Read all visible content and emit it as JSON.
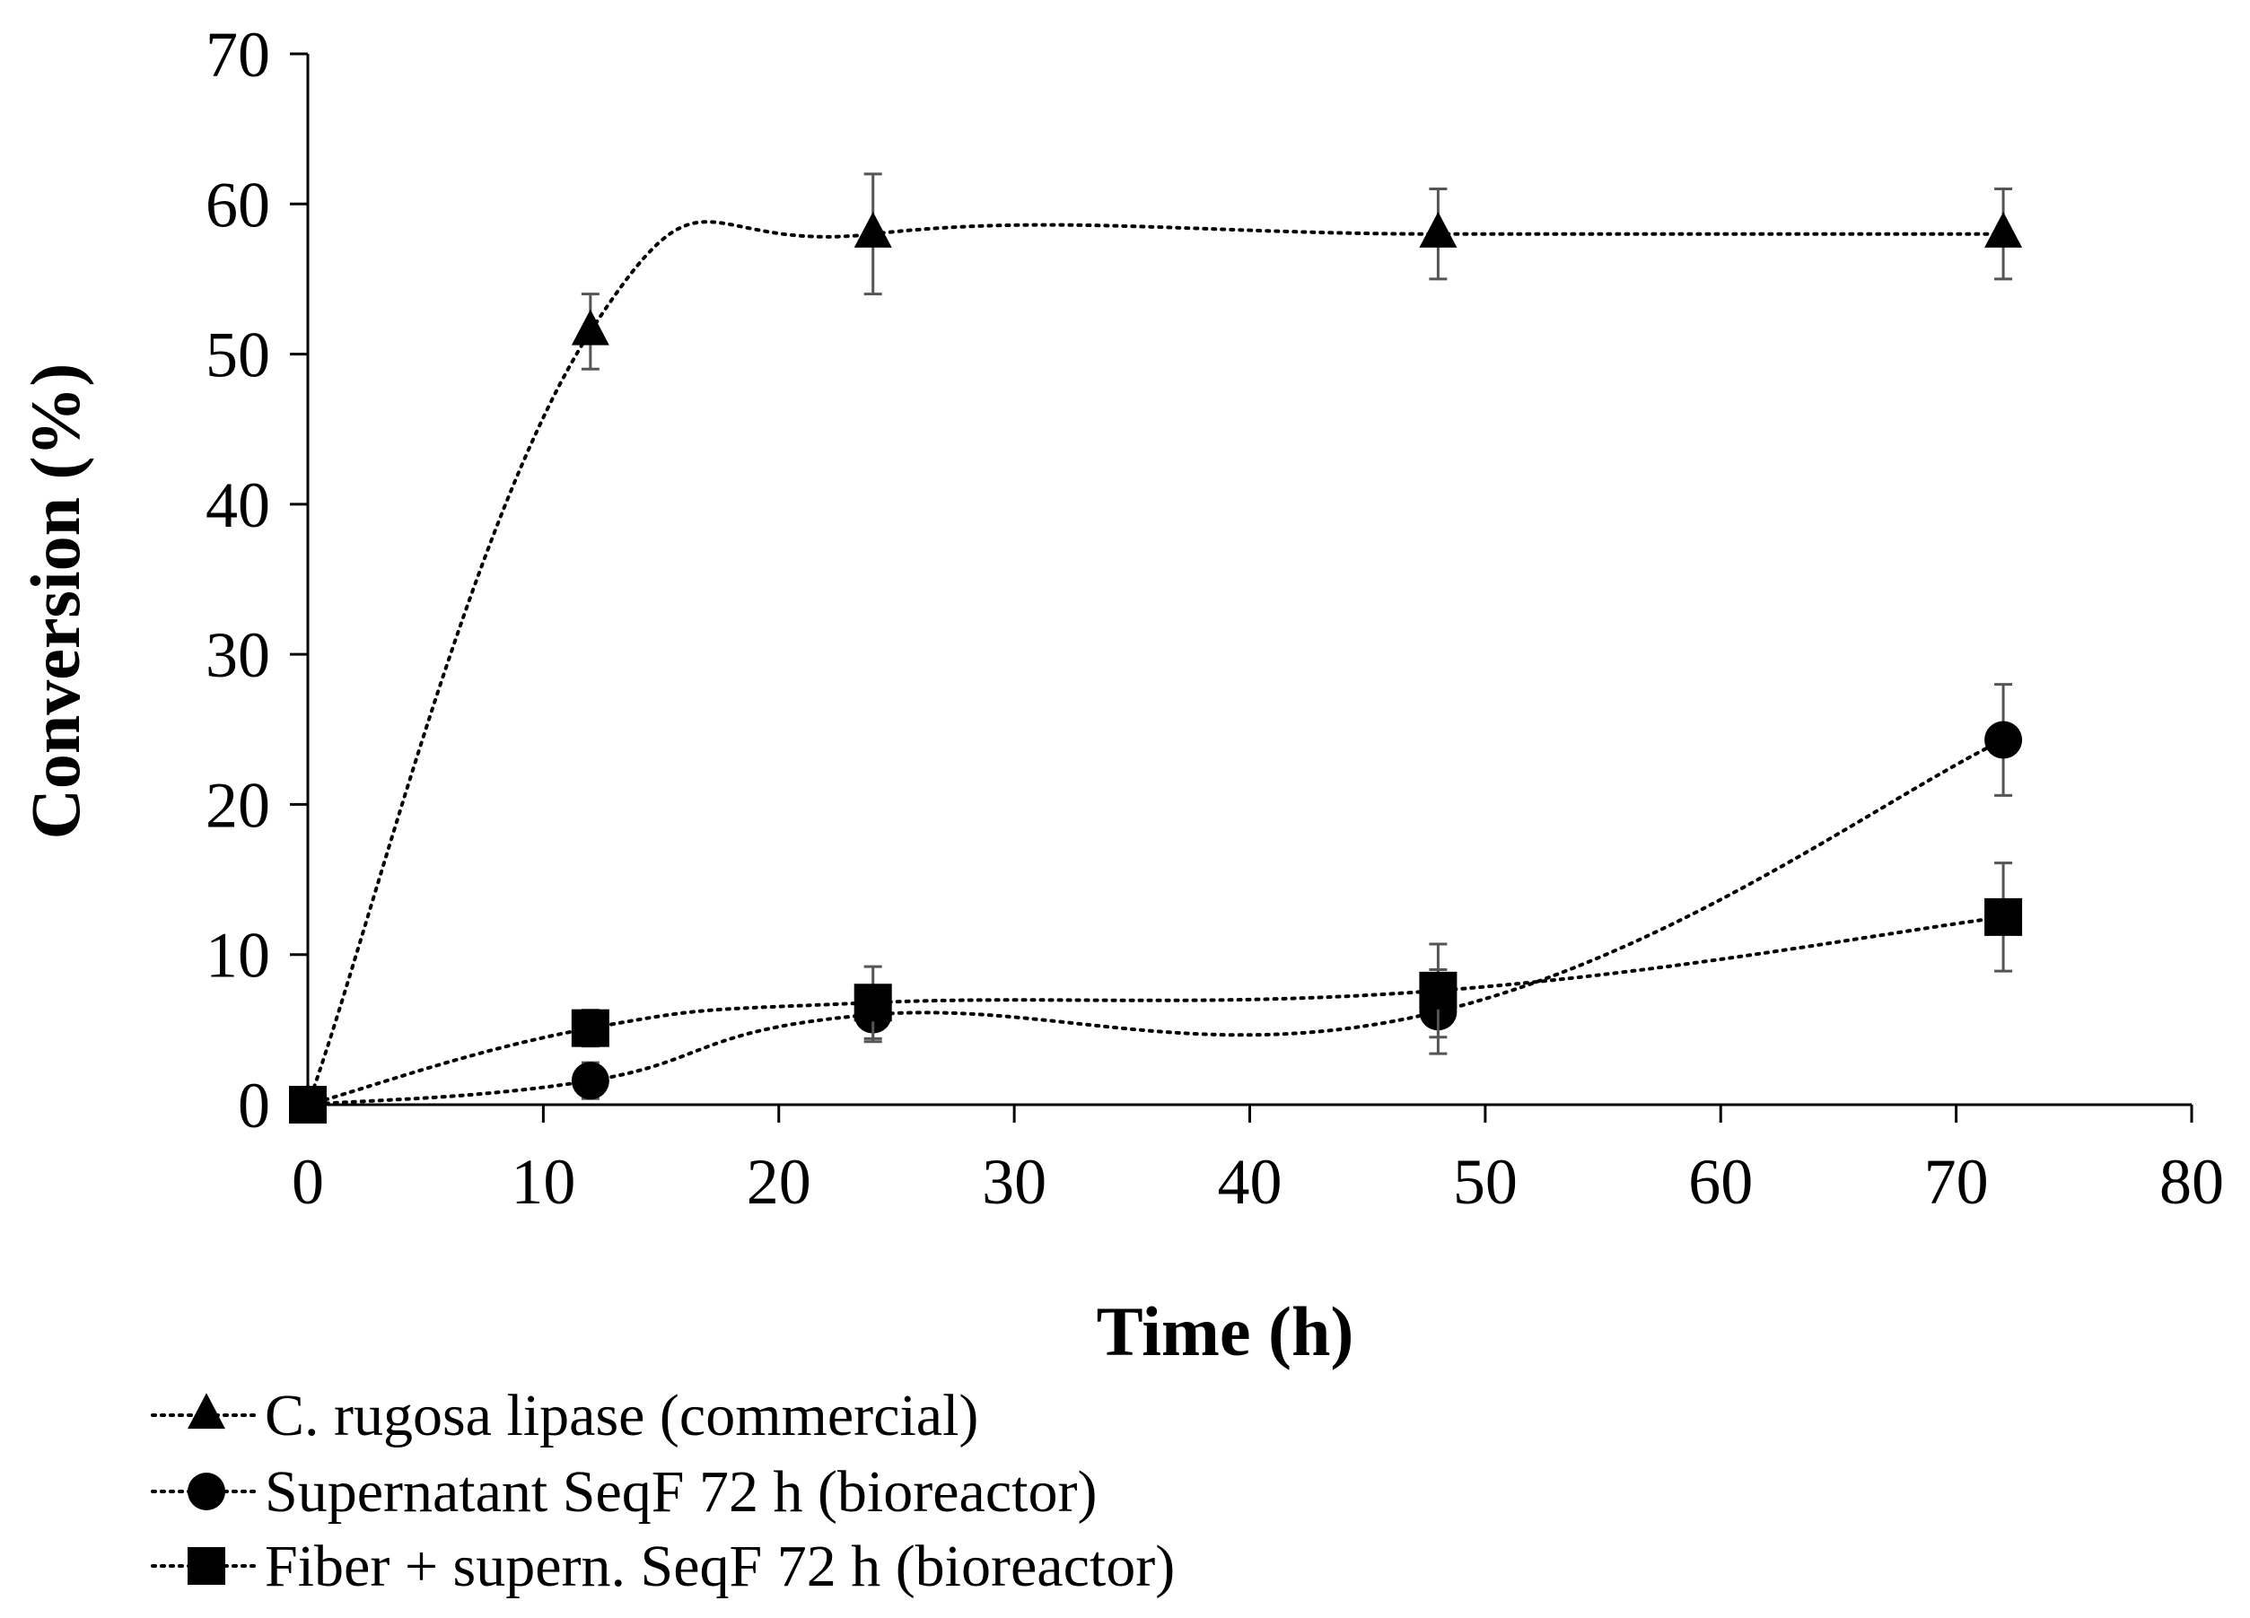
{
  "chart_data": {
    "type": "line",
    "title": "",
    "xlabel": "Time (h)",
    "ylabel": "Conversion (%)",
    "xlim": [
      0,
      80
    ],
    "ylim": [
      0,
      70
    ],
    "xticks": [
      0,
      10,
      20,
      30,
      40,
      50,
      60,
      70,
      80
    ],
    "yticks": [
      0,
      10,
      20,
      30,
      40,
      50,
      60,
      70
    ],
    "x": [
      0,
      12,
      24,
      48,
      72
    ],
    "grid": false,
    "legend_position": "bottom-left",
    "series": [
      {
        "name": "C. rugosa lipase (commercial)",
        "marker": "triangle",
        "values": [
          0,
          51.5,
          58,
          58,
          58
        ],
        "errors": [
          0,
          2.5,
          4,
          3,
          3
        ]
      },
      {
        "name": "Supernatant SeqF 72 h (bioreactor)",
        "marker": "circle",
        "values": [
          0,
          1.6,
          6,
          6.2,
          24.3
        ],
        "errors": [
          0,
          1.2,
          1.8,
          2.8,
          3.7
        ]
      },
      {
        "name": "Fiber + supern. SeqF 72 h (bioreactor)",
        "marker": "square",
        "values": [
          0,
          5.1,
          6.8,
          7.6,
          12.5
        ],
        "errors": [
          0,
          1.2,
          2.4,
          3.1,
          3.6
        ]
      }
    ]
  }
}
